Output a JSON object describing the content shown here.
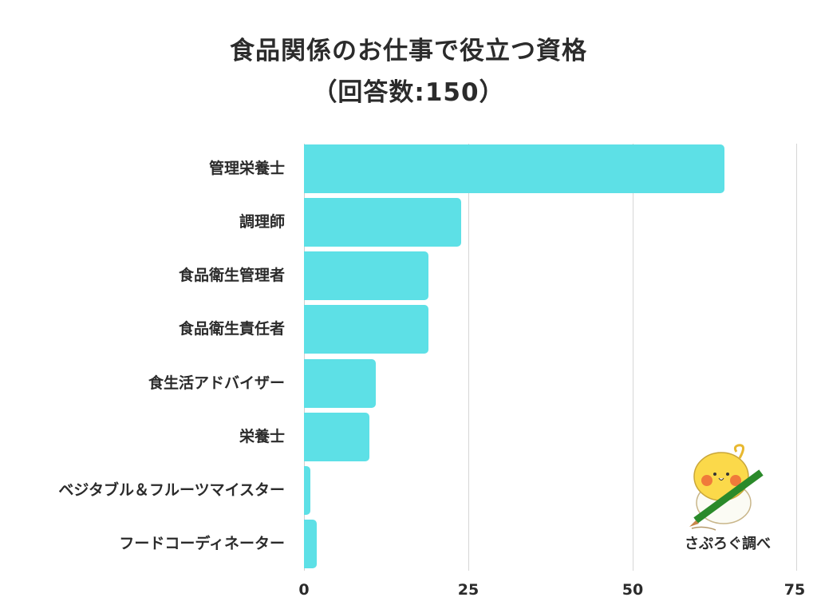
{
  "title": "食品関係のお仕事で役立つ資格",
  "subtitle": "（回答数:150）",
  "credit": "さぷろぐ調べ",
  "colors": {
    "bar": "#5de0e6",
    "text": "#2b2b2b",
    "grid": "#d6d6d6"
  },
  "axis": {
    "ticks": [
      "0",
      "25",
      "50",
      "75"
    ]
  },
  "chart_data": {
    "type": "bar",
    "orientation": "horizontal",
    "title": "食品関係のお仕事で役立つ資格（回答数:150）",
    "categories": [
      "管理栄養士",
      "調理師",
      "食品衛生管理者",
      "食品衛生責任者",
      "食生活アドバイザー",
      "栄養士",
      "ベジタブル＆フルーツマイスター",
      "フードコーディネーター"
    ],
    "values": [
      64,
      24,
      19,
      19,
      11,
      10,
      1,
      2
    ],
    "xlabel": "",
    "ylabel": "",
    "xlim": [
      0,
      75
    ],
    "xticks": [
      0,
      25,
      50,
      75
    ],
    "grid": true,
    "legend": null
  }
}
